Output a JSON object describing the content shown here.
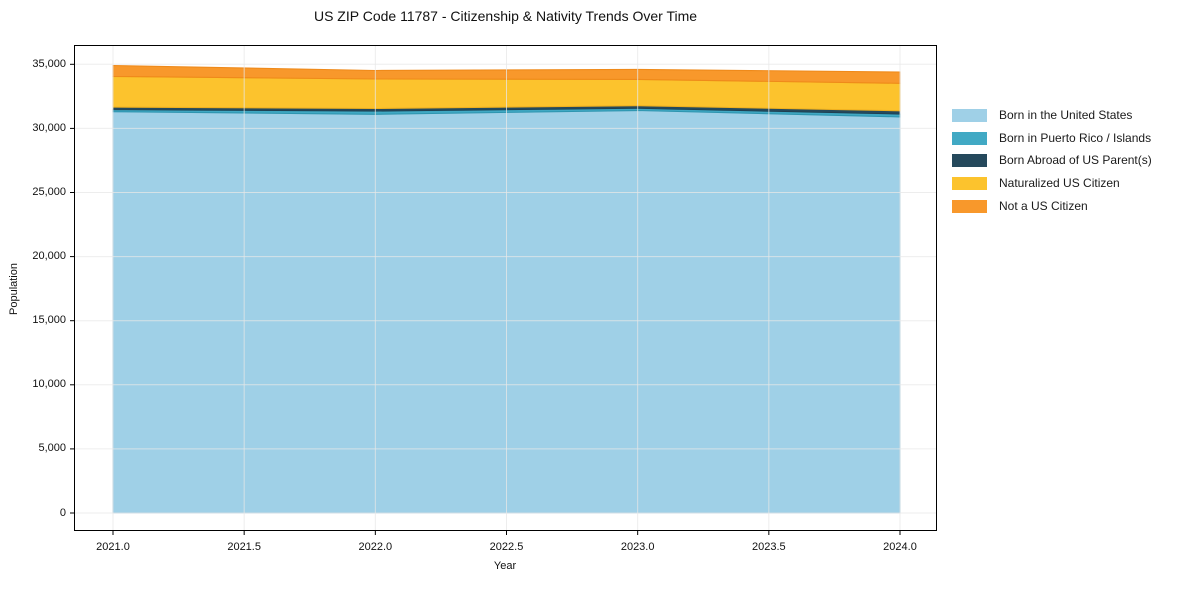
{
  "figure": {
    "title": "US ZIP Code 11787 - Citizenship & Nativity Trends Over Time",
    "xlabel": "Year",
    "ylabel": "Population"
  },
  "axes": {
    "x_tick_labels": [
      "2021.0",
      "2021.5",
      "2022.0",
      "2022.5",
      "2023.0",
      "2023.5",
      "2024.0"
    ],
    "x_tick_values": [
      2021,
      2021.5,
      2022,
      2022.5,
      2023,
      2023.5,
      2024
    ],
    "y_tick_labels": [
      "0",
      "5,000",
      "10,000",
      "15,000",
      "20,000",
      "25,000",
      "30,000",
      "35,000"
    ],
    "y_tick_values": [
      0,
      5000,
      10000,
      15000,
      20000,
      25000,
      30000,
      35000
    ],
    "grid": true,
    "gridline_color": "#e8e8e8",
    "spine_color": "#000000"
  },
  "chart_data": {
    "type": "area",
    "stacked": true,
    "title": "US ZIP Code 11787 - Citizenship & Nativity Trends Over Time",
    "xlabel": "Year",
    "ylabel": "Population",
    "x": [
      2021,
      2022,
      2023,
      2024
    ],
    "xlim": [
      2020.85,
      2024.14
    ],
    "ylim": [
      -1800,
      36500
    ],
    "grid": true,
    "legend_position": "right-outside",
    "series": [
      {
        "name": "Born in the United States",
        "color": "#9fd0e7",
        "edge": "#8cc3de",
        "values": [
          31300,
          31100,
          31400,
          30900
        ]
      },
      {
        "name": "Born in Puerto Rico / Islands",
        "color": "#41a9c4",
        "edge": "#2f96b0",
        "values": [
          150,
          240,
          160,
          210
        ]
      },
      {
        "name": "Born Abroad of US Parent(s)",
        "color": "#25495c",
        "edge": "#1d3a4a",
        "values": [
          210,
          210,
          210,
          260
        ]
      },
      {
        "name": "Naturalized US Citizen",
        "color": "#fcc32d",
        "edge": "#f0b01e",
        "values": [
          2400,
          2300,
          2050,
          2150
        ]
      },
      {
        "name": "Not a US Citizen",
        "color": "#f8982b",
        "edge": "#ef8a1a",
        "values": [
          850,
          670,
          780,
          880
        ]
      }
    ]
  }
}
